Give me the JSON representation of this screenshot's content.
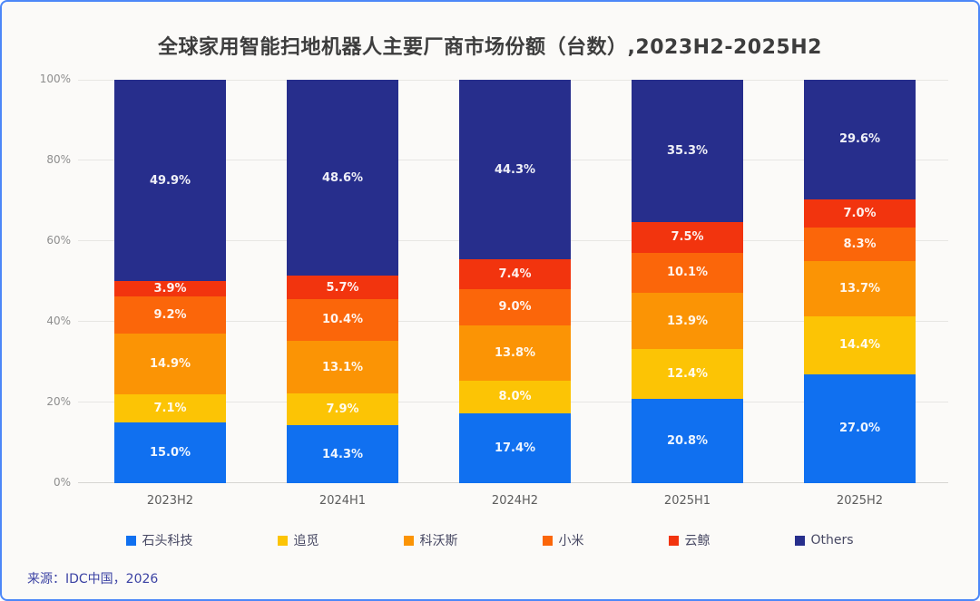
{
  "title": "全球家用智能扫地机器人主要厂商市场份额（台数）,2023H2-2025H2",
  "source": "来源：IDC中国，2026",
  "colors": {
    "frame_border": "#4C87F8",
    "background": "#FBFAF8",
    "title_text": "#3D3D3D",
    "gridline": "#E7E6E3",
    "axis_line": "#D6D5D2",
    "tick_text": "#8E8E8E",
    "legend_text": "#474863",
    "source_text": "#3C43A4",
    "segment_label": "#FFFFFF"
  },
  "chart_data": {
    "type": "bar",
    "stacked": true,
    "percent": true,
    "title": "全球家用智能扫地机器人主要厂商市场份额（台数）,2023H2-2025H2",
    "xlabel": "",
    "ylabel": "",
    "categories": [
      "2023H2",
      "2024H1",
      "2024H2",
      "2025H1",
      "2025H2"
    ],
    "series": [
      {
        "name": "石头科技",
        "color": "#1070F0",
        "values": [
          15.0,
          14.3,
          17.4,
          20.8,
          27.0
        ]
      },
      {
        "name": "追觅",
        "color": "#FCC405",
        "values": [
          7.1,
          7.9,
          8.0,
          12.4,
          14.4
        ]
      },
      {
        "name": "科沃斯",
        "color": "#FB9405",
        "values": [
          14.9,
          13.1,
          13.8,
          13.9,
          13.7
        ]
      },
      {
        "name": "小米",
        "color": "#FB660A",
        "values": [
          9.2,
          10.4,
          9.0,
          10.1,
          8.3
        ]
      },
      {
        "name": "云鲸",
        "color": "#F2340E",
        "values": [
          3.9,
          5.7,
          7.4,
          7.5,
          7.0
        ]
      },
      {
        "name": "Others",
        "color": "#272E8C",
        "values": [
          49.9,
          48.6,
          44.3,
          35.3,
          29.6
        ]
      }
    ],
    "ylim": [
      0,
      100
    ],
    "yticks": [
      "0%",
      "20%",
      "40%",
      "60%",
      "80%",
      "100%"
    ],
    "grid": true,
    "legend_position": "bottom",
    "value_label_format": "{v}%"
  }
}
